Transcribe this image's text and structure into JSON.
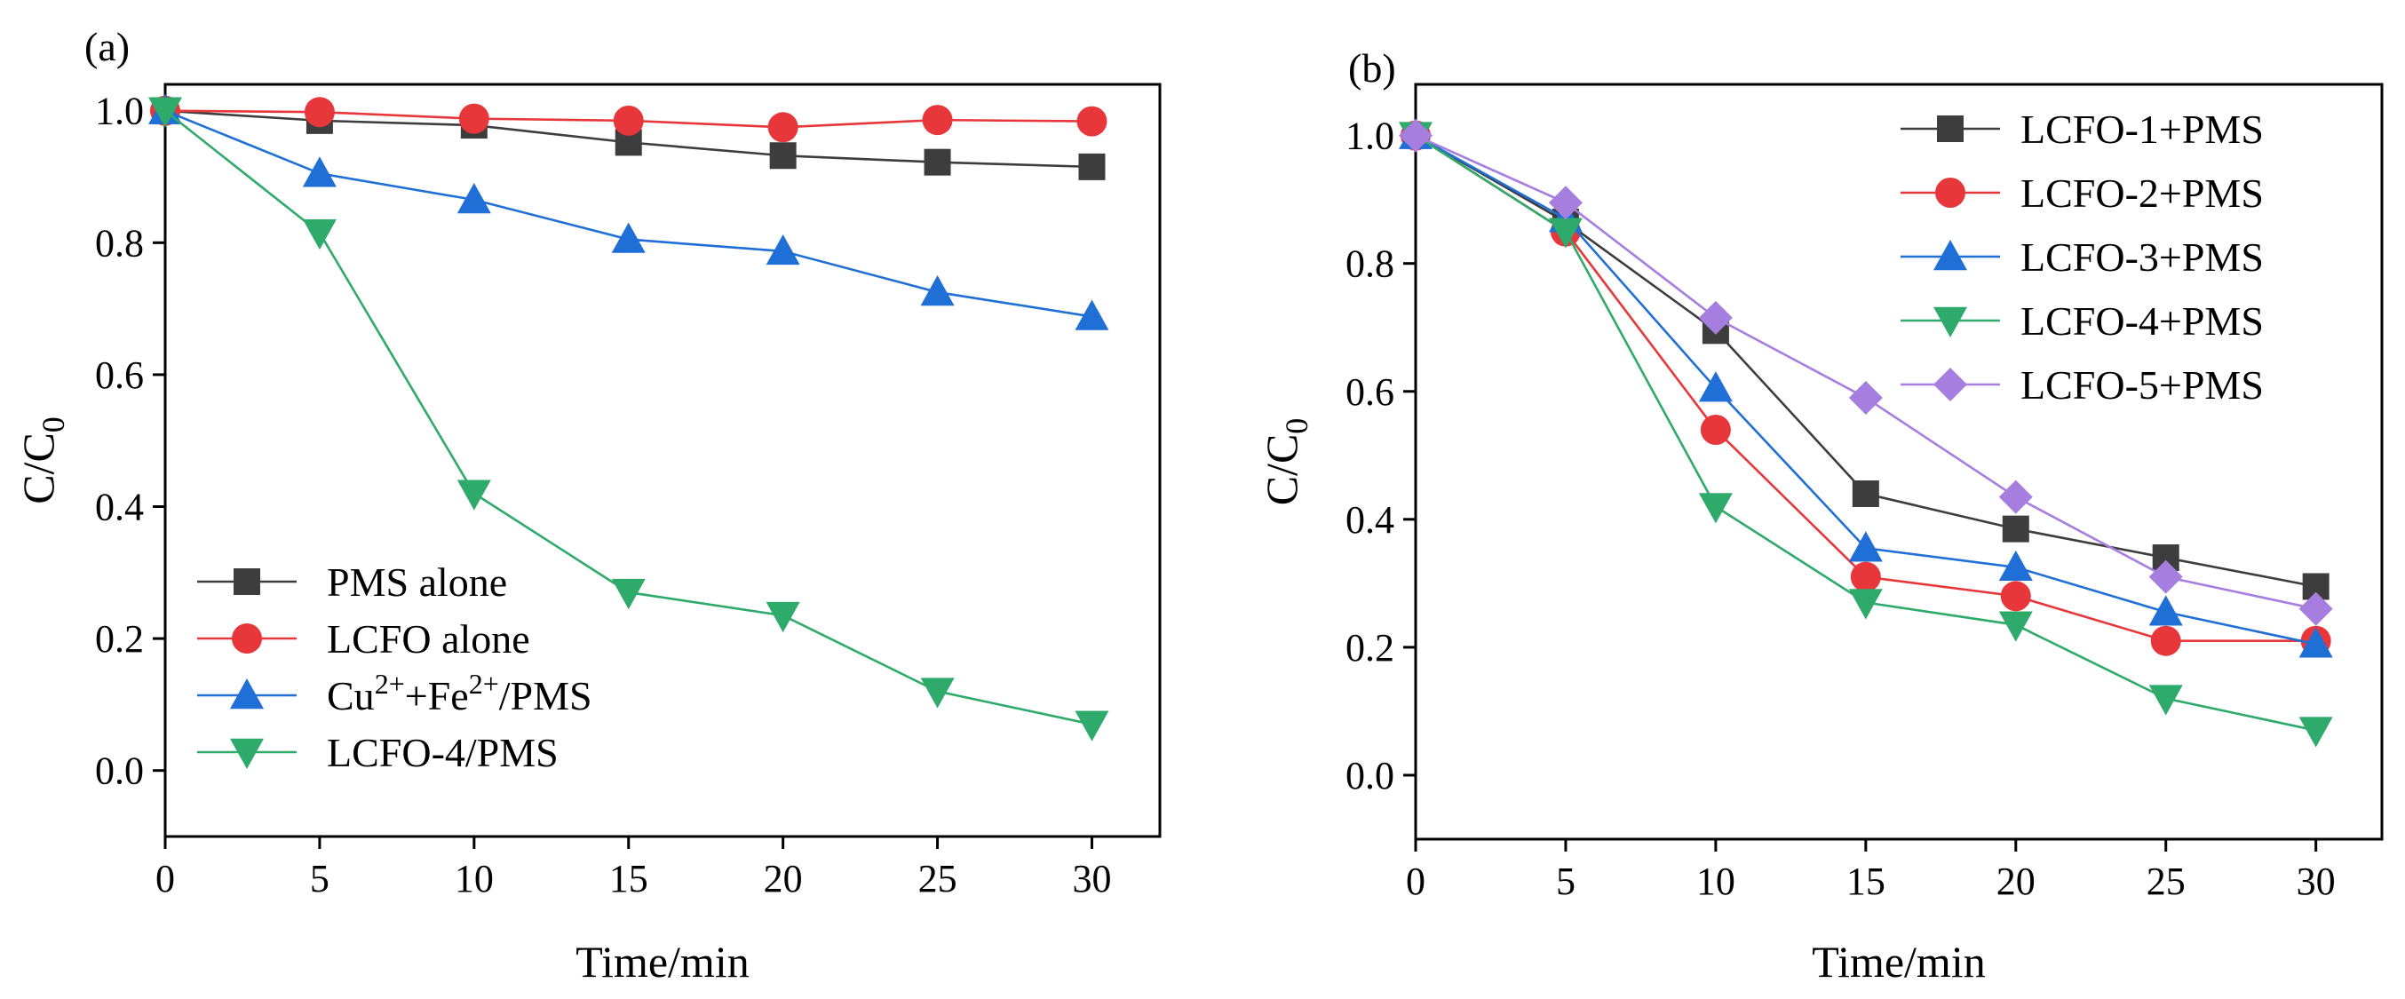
{
  "chart_data": [
    {
      "type": "line",
      "panel_label": "(a)",
      "xlabel": "Time/min",
      "ylabel": {
        "main": "C/C",
        "subscript": "0"
      },
      "xlim": [
        0,
        32.2
      ],
      "ylim": [
        -0.1,
        1.04
      ],
      "x_ticks": [
        0,
        5,
        10,
        15,
        20,
        25,
        30
      ],
      "y_ticks": [
        0.0,
        0.2,
        0.4,
        0.6,
        0.8,
        1.0
      ],
      "x_tick_labels": [
        "0",
        "5",
        "10",
        "15",
        "20",
        "25",
        "30"
      ],
      "y_tick_labels": [
        "0.0",
        "0.2",
        "0.4",
        "0.6",
        "0.8",
        "1.0"
      ],
      "x": [
        0,
        5,
        10,
        15,
        20,
        25,
        30
      ],
      "legend_position": "bottom-left",
      "series": [
        {
          "name": "PMS alone",
          "legend_parts": [
            [
              "PMS alone",
              ""
            ]
          ],
          "color": "#3d3d3d",
          "marker": "square",
          "values": [
            1.0,
            0.985,
            0.978,
            0.952,
            0.932,
            0.922,
            0.915
          ]
        },
        {
          "name": "LCFO alone",
          "legend_parts": [
            [
              "LCFO alone",
              ""
            ]
          ],
          "color": "#e8373a",
          "marker": "circle",
          "values": [
            1.0,
            0.998,
            0.988,
            0.985,
            0.975,
            0.986,
            0.984
          ]
        },
        {
          "name": "Cu2++Fe2+/PMS",
          "legend_parts": [
            [
              "Cu",
              ""
            ],
            [
              "2+",
              "sup"
            ],
            [
              "+Fe",
              ""
            ],
            [
              "2+",
              "sup"
            ],
            [
              "/PMS",
              ""
            ]
          ],
          "color": "#1f6fd6",
          "marker": "triangle-up",
          "values": [
            1.0,
            0.905,
            0.865,
            0.805,
            0.787,
            0.725,
            0.688
          ]
        },
        {
          "name": "LCFO-4/PMS",
          "legend_parts": [
            [
              "LCFO-4/PMS",
              ""
            ]
          ],
          "color": "#2eaa6a",
          "marker": "triangle-down",
          "values": [
            1.0,
            0.815,
            0.42,
            0.27,
            0.235,
            0.12,
            0.07
          ]
        }
      ]
    },
    {
      "type": "line",
      "panel_label": "(b)",
      "xlabel": "Time/min",
      "ylabel": {
        "main": "C/C",
        "subscript": "0"
      },
      "xlim": [
        0,
        32.2
      ],
      "ylim": [
        -0.1,
        1.08
      ],
      "x_ticks": [
        0,
        5,
        10,
        15,
        20,
        25,
        30
      ],
      "y_ticks": [
        0.0,
        0.2,
        0.4,
        0.6,
        0.8,
        1.0
      ],
      "x_tick_labels": [
        "0",
        "5",
        "10",
        "15",
        "20",
        "25",
        "30"
      ],
      "y_tick_labels": [
        "0.0",
        "0.2",
        "0.4",
        "0.6",
        "0.8",
        "1.0"
      ],
      "x": [
        0,
        5,
        10,
        15,
        20,
        25,
        30
      ],
      "legend_position": "top-right",
      "series": [
        {
          "name": "LCFO-1+PMS",
          "legend_parts": [
            [
              "LCFO-1+PMS",
              ""
            ]
          ],
          "color": "#3d3d3d",
          "marker": "square",
          "values": [
            1.0,
            0.865,
            0.695,
            0.44,
            0.385,
            0.34,
            0.295
          ]
        },
        {
          "name": "LCFO-2+PMS",
          "legend_parts": [
            [
              "LCFO-2+PMS",
              ""
            ]
          ],
          "color": "#e8373a",
          "marker": "circle",
          "values": [
            1.0,
            0.85,
            0.54,
            0.31,
            0.28,
            0.21,
            0.21
          ]
        },
        {
          "name": "LCFO-3+PMS",
          "legend_parts": [
            [
              "LCFO-3+PMS",
              ""
            ]
          ],
          "color": "#1f6fd6",
          "marker": "triangle-up",
          "values": [
            1.0,
            0.87,
            0.605,
            0.355,
            0.325,
            0.255,
            0.205
          ]
        },
        {
          "name": "LCFO-4+PMS",
          "legend_parts": [
            [
              "LCFO-4+PMS",
              ""
            ]
          ],
          "color": "#2eaa6a",
          "marker": "triangle-down",
          "values": [
            1.0,
            0.85,
            0.42,
            0.27,
            0.235,
            0.12,
            0.07
          ]
        },
        {
          "name": "LCFO-5+PMS",
          "legend_parts": [
            [
              "LCFO-5+PMS",
              ""
            ]
          ],
          "color": "#a67ee0",
          "marker": "diamond",
          "values": [
            1.0,
            0.895,
            0.715,
            0.59,
            0.435,
            0.31,
            0.26
          ]
        }
      ]
    }
  ]
}
